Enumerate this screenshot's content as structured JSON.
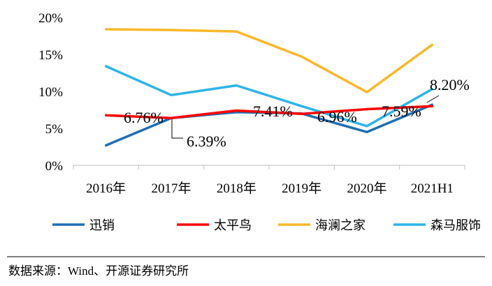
{
  "chart_data": {
    "type": "line",
    "categories": [
      "2016年",
      "2017年",
      "2018年",
      "2019年",
      "2020年",
      "2021H1"
    ],
    "ylim": [
      0,
      20
    ],
    "yticks": [
      0,
      5,
      10,
      15,
      20
    ],
    "ytick_labels": [
      "0%",
      "5%",
      "10%",
      "15%",
      "20%"
    ],
    "series": [
      {
        "name": "迅销",
        "color": "#1f6fb4",
        "values": [
          2.7,
          6.39,
          7.2,
          7.0,
          4.5,
          8.2
        ]
      },
      {
        "name": "太平鸟",
        "color": "#ff0000",
        "values": [
          6.76,
          6.4,
          7.41,
          6.96,
          7.59,
          8.0
        ]
      },
      {
        "name": "海澜之家",
        "color": "#f9b829",
        "values": [
          18.4,
          18.3,
          18.1,
          14.7,
          9.9,
          16.3
        ]
      },
      {
        "name": "森马服饰",
        "color": "#2eb4e8",
        "values": [
          13.4,
          9.5,
          10.8,
          8.0,
          5.3,
          10.3
        ]
      }
    ],
    "data_labels": [
      "6.76%",
      "6.39%",
      "7.41%",
      "6.96%",
      "7.59%",
      "8.20%"
    ],
    "legend_position": "bottom"
  },
  "source_text": "数据来源：Wind、开源证券研究所"
}
